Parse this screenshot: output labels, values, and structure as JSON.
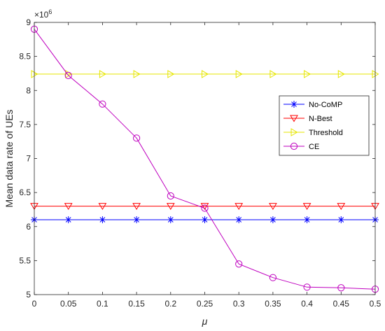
{
  "chart_data": {
    "type": "line",
    "title": "",
    "xlabel": "μ",
    "ylabel": "Mean data rate of UEs",
    "y_multiplier_label": "×10",
    "y_multiplier_exponent": "6",
    "xlim": [
      0,
      0.5
    ],
    "ylim": [
      5,
      9
    ],
    "x_ticks": [
      "0",
      "0.05",
      "0.1",
      "0.15",
      "0.2",
      "0.25",
      "0.3",
      "0.35",
      "0.4",
      "0.45",
      "0.5"
    ],
    "y_ticks": [
      "5",
      "5.5",
      "6",
      "6.5",
      "7",
      "7.5",
      "8",
      "8.5",
      "9"
    ],
    "grid": false,
    "legend_position": "right",
    "x": [
      0,
      0.05,
      0.1,
      0.15,
      0.2,
      0.25,
      0.3,
      0.35,
      0.4,
      0.45,
      0.5
    ],
    "series": [
      {
        "name": "No-CoMP",
        "color": "#0000ff",
        "marker": "asterisk",
        "values": [
          6.1,
          6.1,
          6.1,
          6.1,
          6.1,
          6.1,
          6.1,
          6.1,
          6.1,
          6.1,
          6.1
        ]
      },
      {
        "name": "N-Best",
        "color": "#ff0000",
        "marker": "triangle-down",
        "values": [
          6.3,
          6.3,
          6.3,
          6.3,
          6.3,
          6.3,
          6.3,
          6.3,
          6.3,
          6.3,
          6.3
        ]
      },
      {
        "name": "Threshold",
        "color": "#e6e600",
        "marker": "triangle-right",
        "values": [
          8.24,
          8.24,
          8.24,
          8.24,
          8.24,
          8.24,
          8.24,
          8.24,
          8.24,
          8.24,
          8.24
        ]
      },
      {
        "name": "CE",
        "color": "#bf00bf",
        "marker": "circle",
        "values": [
          8.9,
          8.22,
          7.8,
          7.3,
          6.45,
          6.27,
          5.45,
          5.25,
          5.11,
          5.1,
          5.08
        ]
      }
    ]
  }
}
